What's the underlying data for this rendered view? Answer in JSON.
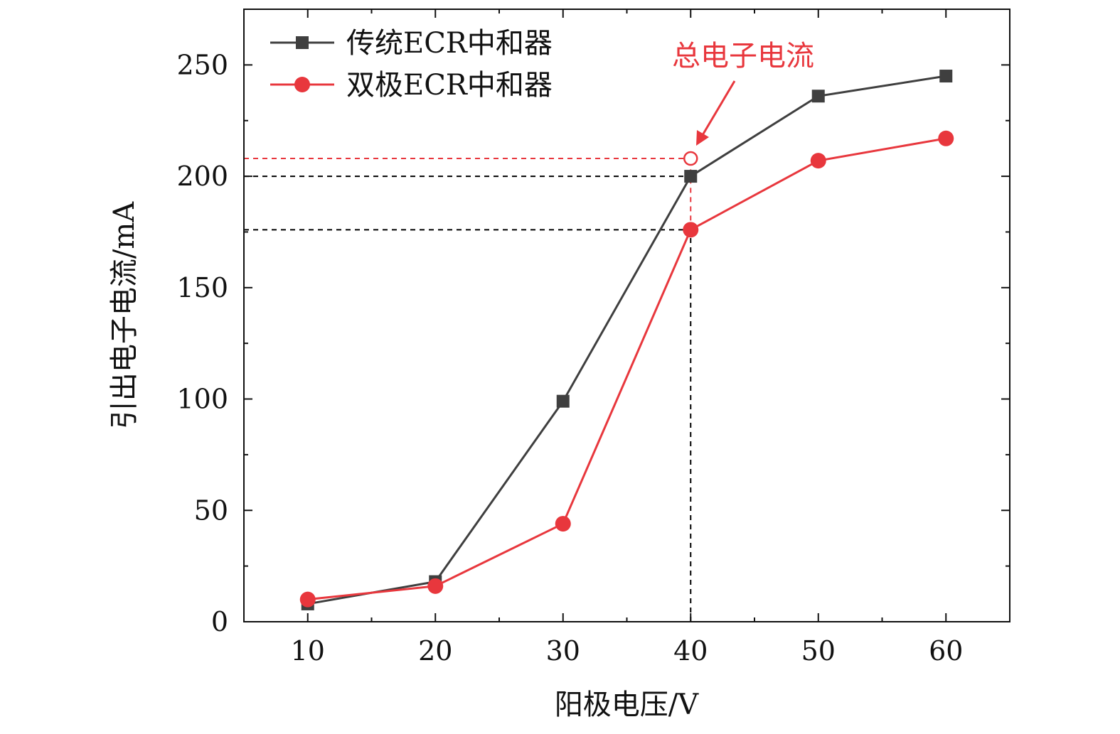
{
  "chart_data": {
    "type": "line",
    "xlabel": "阳极电压/V",
    "ylabel": "引出电子电流/mA",
    "xlim": [
      5,
      65
    ],
    "ylim": [
      0,
      275
    ],
    "xticks": [
      10,
      20,
      30,
      40,
      50,
      60
    ],
    "yticks": [
      0,
      50,
      100,
      150,
      200,
      250
    ],
    "x_tick_labels": [
      "10",
      "20",
      "30",
      "40",
      "50",
      "60"
    ],
    "y_tick_labels": [
      "0",
      "50",
      "100",
      "150",
      "200",
      "250"
    ],
    "grid": false,
    "legend_position": "top-left",
    "series": [
      {
        "name": "传统ECR中和器",
        "marker": "square",
        "color": "#3f3f3f",
        "x": [
          10,
          20,
          30,
          40,
          50,
          60
        ],
        "y": [
          8,
          18,
          99,
          200,
          236,
          245
        ]
      },
      {
        "name": "双极ECR中和器",
        "marker": "circle",
        "color": "#e8373d",
        "x": [
          10,
          20,
          30,
          40,
          50,
          60
        ],
        "y": [
          10,
          16,
          44,
          176,
          207,
          217
        ]
      }
    ],
    "annotations": [
      {
        "text": "总电子电流",
        "color": "#e8373d",
        "x": 40,
        "y": 208,
        "marker": "open-circle"
      }
    ],
    "reference_lines": [
      {
        "color": "#e8373d",
        "style": "dashed",
        "y": 208,
        "x_end": 40
      },
      {
        "color": "#000000",
        "style": "dashed",
        "y": 200,
        "x_end": 40
      },
      {
        "color": "#000000",
        "style": "dashed",
        "y": 176,
        "x_end": 40
      },
      {
        "color": "#000000",
        "style": "dashed",
        "x": 40,
        "y_start": 0,
        "y_end": 176
      },
      {
        "color": "#e8373d",
        "style": "dashed",
        "x": 40,
        "y_start": 176,
        "y_end": 208
      }
    ]
  }
}
